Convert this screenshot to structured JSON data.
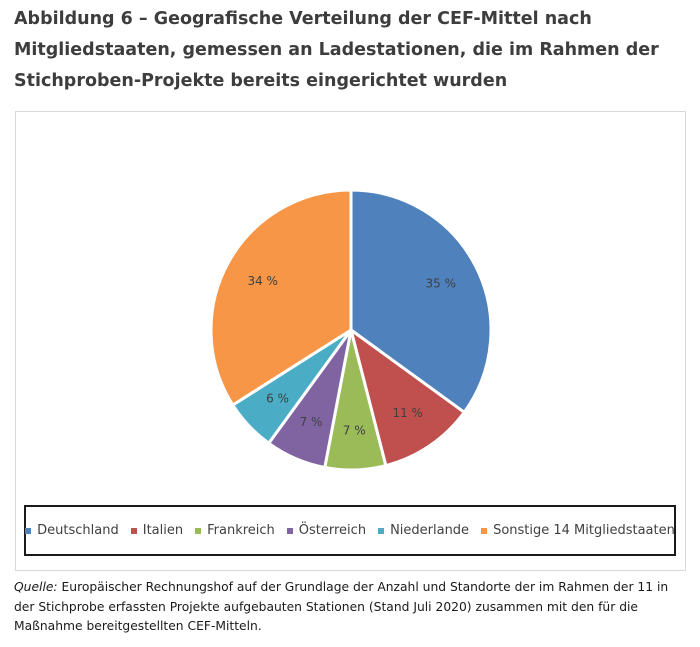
{
  "title": "Abbildung 6 – Geografische Verteilung der CEF-Mittel nach Mitgliedstaaten, gemessen an Ladestationen, die im Rahmen der Stichproben-Projekte bereits eingerichtet wurden",
  "source": {
    "label": "Quelle:",
    "text": " Europäischer Rechnungshof auf der Grundlage der Anzahl und Standorte der im Rahmen der 11 in der Stichprobe erfassten Projekte aufgebauten Stationen (Stand Juli 2020) zusammen mit den für die Maßnahme bereitgestellten CEF-Mitteln."
  },
  "chart_data": {
    "type": "pie",
    "title": "",
    "legend_position": "bottom",
    "slices": [
      {
        "name": "Deutschland",
        "value": 35,
        "label": "35 %",
        "color": "#4F81BD"
      },
      {
        "name": "Italien",
        "value": 11,
        "label": "11 %",
        "color": "#C0504D"
      },
      {
        "name": "Frankreich",
        "value": 7,
        "label": "7 %",
        "color": "#9BBB59"
      },
      {
        "name": "Österreich",
        "value": 7,
        "label": "7 %",
        "color": "#8064A2"
      },
      {
        "name": "Niederlande",
        "value": 6,
        "label": "6 %",
        "color": "#4BACC6"
      },
      {
        "name": "Sonstige 14 Mitgliedstaaten",
        "value": 34,
        "label": "34 %",
        "color": "#F79646"
      }
    ]
  }
}
